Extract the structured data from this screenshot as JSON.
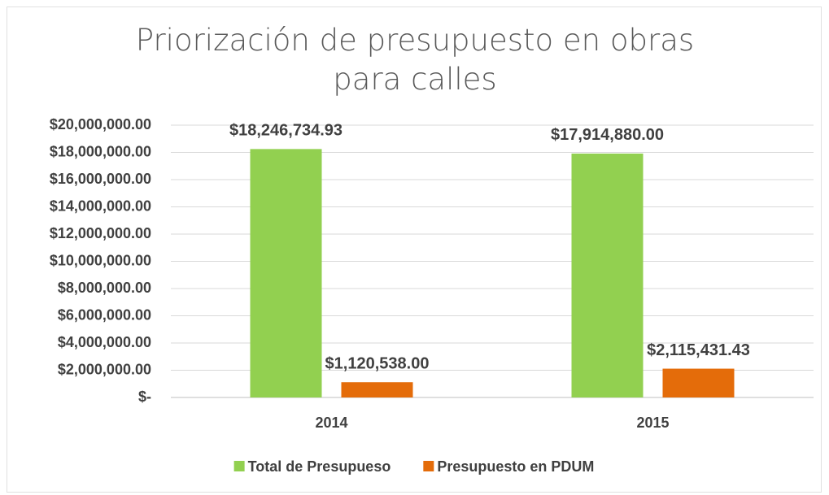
{
  "chart_data": {
    "type": "bar",
    "title": "Priorización de presupuesto en obras para calles",
    "categories": [
      "2014",
      "2015"
    ],
    "series": [
      {
        "name": "Total de Presupueso",
        "color": "#92d050",
        "values": [
          18246734.93,
          17914880.0
        ],
        "value_labels": [
          "$18,246,734.93",
          "$17,914,880.00"
        ]
      },
      {
        "name": "Presupuesto en PDUM",
        "color": "#e46c0a",
        "values": [
          1120538.0,
          2115431.43
        ],
        "value_labels": [
          "$1,120,538.00",
          "$2,115,431.43"
        ]
      }
    ],
    "ylim": [
      0,
      20000000
    ],
    "yticks": [
      {
        "value": 0,
        "label": "$-"
      },
      {
        "value": 2000000,
        "label": "$2,000,000.00"
      },
      {
        "value": 4000000,
        "label": "$4,000,000.00"
      },
      {
        "value": 6000000,
        "label": "$6,000,000.00"
      },
      {
        "value": 8000000,
        "label": "$8,000,000.00"
      },
      {
        "value": 10000000,
        "label": "$10,000,000.00"
      },
      {
        "value": 12000000,
        "label": "$12,000,000.00"
      },
      {
        "value": 14000000,
        "label": "$14,000,000.00"
      },
      {
        "value": 16000000,
        "label": "$16,000,000.00"
      },
      {
        "value": 18000000,
        "label": "$18,000,000.00"
      },
      {
        "value": 20000000,
        "label": "$20,000,000.00"
      }
    ],
    "grid": true,
    "legend": "bottom"
  }
}
